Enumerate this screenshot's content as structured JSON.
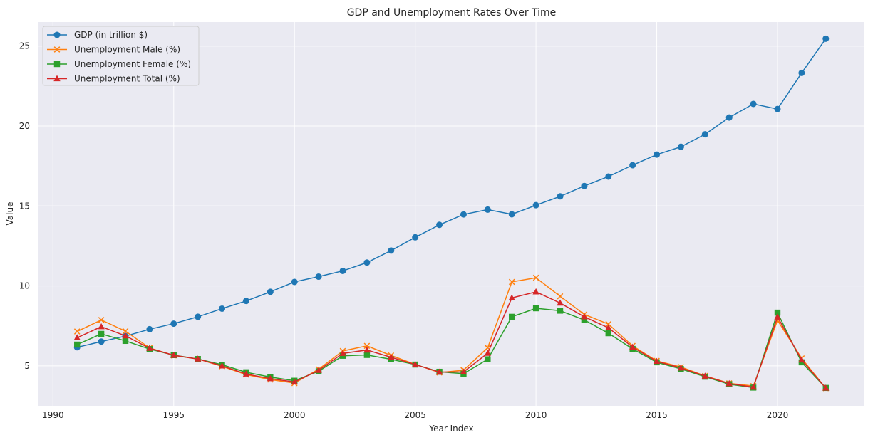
{
  "chart_data": {
    "type": "line",
    "title": "GDP and Unemployment Rates Over Time",
    "xlabel": "Year Index",
    "ylabel": "Value",
    "xlim": [
      1989.4,
      2023.6
    ],
    "ylim": [
      2.5,
      26.5
    ],
    "xticks": [
      1990,
      1995,
      2000,
      2005,
      2010,
      2015,
      2020
    ],
    "yticks": [
      5,
      10,
      15,
      20,
      25
    ],
    "grid": true,
    "legend_position": "top-left",
    "x": [
      1991,
      1992,
      1993,
      1994,
      1995,
      1996,
      1997,
      1998,
      1999,
      2000,
      2001,
      2002,
      2003,
      2004,
      2005,
      2006,
      2007,
      2008,
      2009,
      2010,
      2011,
      2012,
      2013,
      2014,
      2015,
      2016,
      2017,
      2018,
      2019,
      2020,
      2021,
      2022
    ],
    "series": [
      {
        "name": "GDP (in trillion $)",
        "color": "#1f77b4",
        "marker": "circle",
        "values": [
          6.16,
          6.52,
          6.86,
          7.29,
          7.64,
          8.07,
          8.58,
          9.06,
          9.63,
          10.25,
          10.58,
          10.94,
          11.46,
          12.21,
          13.04,
          13.82,
          14.47,
          14.77,
          14.48,
          15.05,
          15.6,
          16.25,
          16.84,
          17.55,
          18.21,
          18.7,
          19.48,
          20.53,
          21.38,
          21.06,
          23.32,
          25.46
        ]
      },
      {
        "name": "Unemployment Male (%)",
        "color": "#ff7f0e",
        "marker": "x",
        "values": [
          7.15,
          7.87,
          7.17,
          6.12,
          5.65,
          5.43,
          4.97,
          4.45,
          4.14,
          3.92,
          4.79,
          5.93,
          6.25,
          5.65,
          5.09,
          4.58,
          4.73,
          6.13,
          10.25,
          10.51,
          9.35,
          8.22,
          7.61,
          6.25,
          5.31,
          4.93,
          4.37,
          3.91,
          3.74,
          7.85,
          5.47,
          3.6
        ]
      },
      {
        "name": "Unemployment Female (%)",
        "color": "#2ca02c",
        "marker": "square",
        "values": [
          6.33,
          7.0,
          6.56,
          6.05,
          5.67,
          5.43,
          5.07,
          4.6,
          4.3,
          4.07,
          4.66,
          5.63,
          5.68,
          5.41,
          5.08,
          4.63,
          4.51,
          5.41,
          8.07,
          8.6,
          8.45,
          7.87,
          7.04,
          6.06,
          5.22,
          4.81,
          4.32,
          3.85,
          3.64,
          8.33,
          5.22,
          3.62
        ]
      },
      {
        "name": "Unemployment Total (%)",
        "color": "#d62728",
        "marker": "triangle",
        "values": [
          6.76,
          7.45,
          6.88,
          6.1,
          5.66,
          5.43,
          5.0,
          4.49,
          4.2,
          3.99,
          4.72,
          5.78,
          5.99,
          5.54,
          5.08,
          4.61,
          4.62,
          5.79,
          9.25,
          9.63,
          8.93,
          8.07,
          7.38,
          6.17,
          5.28,
          4.87,
          4.36,
          3.89,
          3.67,
          8.06,
          5.37,
          3.61
        ]
      }
    ]
  }
}
